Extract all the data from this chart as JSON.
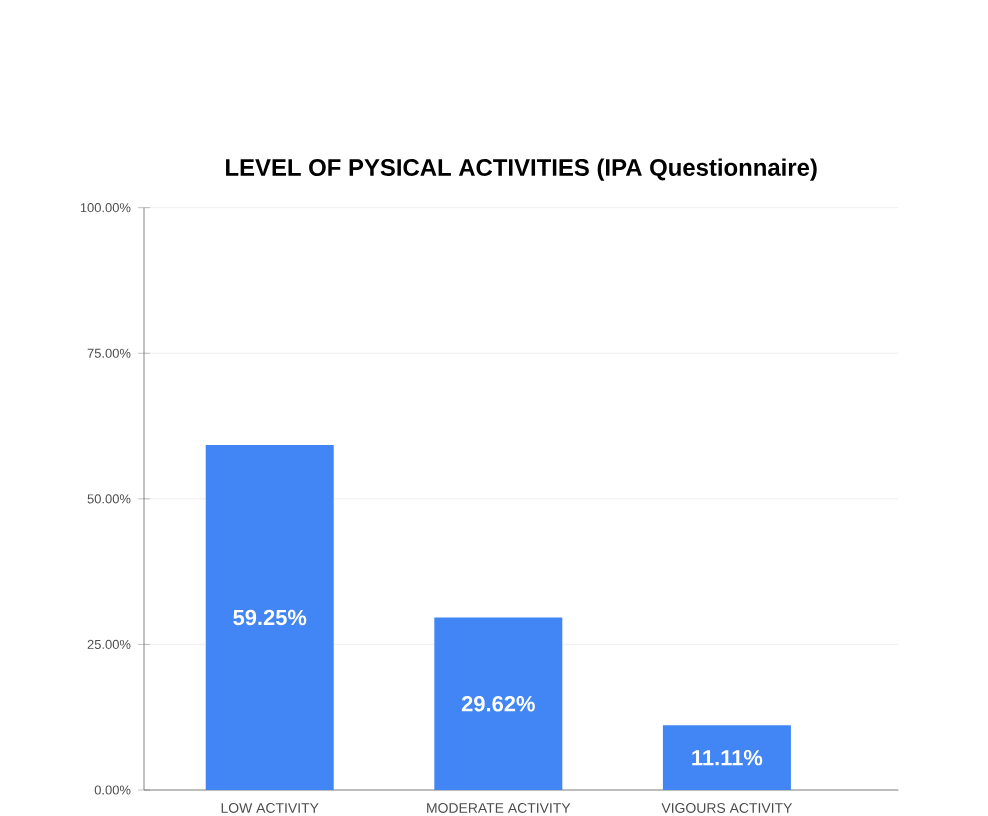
{
  "chart_data": {
    "type": "bar",
    "title": "LEVEL OF PYSICAL ACTIVITIES (IPA Questionnaire)",
    "categories": [
      "LOW ACTIVITY",
      "MODERATE ACTIVITY",
      "VIGOURS ACTIVITY"
    ],
    "values": [
      59.25,
      29.62,
      11.11
    ],
    "value_labels": [
      "59.25%",
      "29.62%",
      "11.11%"
    ],
    "color": "#4285f4",
    "ylim": [
      0,
      100
    ],
    "yticks": [
      {
        "value": 0,
        "label": "0.00%"
      },
      {
        "value": 25,
        "label": "25.00%"
      },
      {
        "value": 50,
        "label": "50.00%"
      },
      {
        "value": 75,
        "label": "75.00%"
      },
      {
        "value": 100,
        "label": "100.00%"
      }
    ],
    "grid": "y"
  }
}
